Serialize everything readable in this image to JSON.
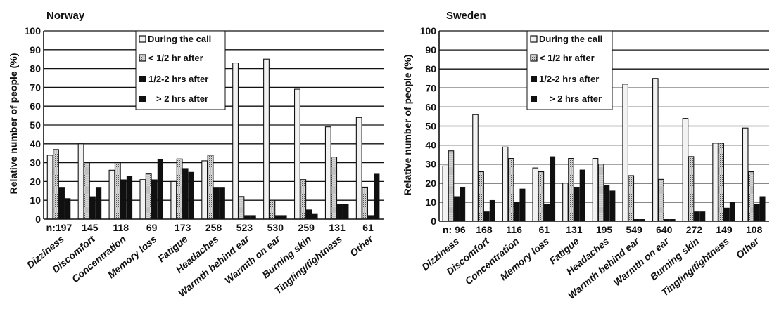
{
  "chart_data": [
    {
      "type": "bar",
      "title": "Norway",
      "ylabel": "Relative number of people (%)",
      "ylim": [
        0,
        100
      ],
      "yticks": [
        0,
        10,
        20,
        30,
        40,
        50,
        60,
        70,
        80,
        90,
        100
      ],
      "grid": true,
      "legend_position": "top-center",
      "categories": [
        "Dizziness",
        "Discomfort",
        "Concentration",
        "Memory loss",
        "Fatigue",
        "Headaches",
        "Warmth behind ear",
        "Warmth on ear",
        "Burning skin",
        "Tingling/tightness",
        "Other"
      ],
      "n_values": [
        "n:197",
        "145",
        "118",
        "69",
        "173",
        "258",
        "523",
        "530",
        "259",
        "131",
        "61"
      ],
      "series": [
        {
          "name": "During the call",
          "values": [
            34,
            40,
            26,
            21,
            20,
            31,
            83,
            85,
            69,
            49,
            54
          ]
        },
        {
          "name": "< 1/2 hr after",
          "values": [
            37,
            30,
            30,
            24,
            32,
            34,
            12,
            10,
            21,
            33,
            17
          ]
        },
        {
          "name": "1/2 - 2 hrs after",
          "values": [
            17,
            12,
            21,
            21,
            27,
            17,
            2,
            2,
            5,
            8,
            2
          ]
        },
        {
          "name": "> 2 hrs after",
          "values": [
            11,
            17,
            23,
            32,
            25,
            17,
            2,
            2,
            3,
            8,
            24
          ]
        }
      ]
    },
    {
      "type": "bar",
      "title": "Sweden",
      "ylabel": "Relative number of people (%)",
      "ylim": [
        0,
        100
      ],
      "yticks": [
        0,
        10,
        20,
        30,
        40,
        50,
        60,
        70,
        80,
        90,
        100
      ],
      "grid": true,
      "legend_position": "top-center",
      "categories": [
        "Dizziness",
        "Discomfort",
        "Concentration",
        "Memory loss",
        "Fatigue",
        "Headaches",
        "Warmth behind ear",
        "Warmth on ear",
        "Burning skin",
        "Tingling/tightness",
        "Other"
      ],
      "n_values": [
        "n: 96",
        "168",
        "116",
        "61",
        "131",
        "195",
        "549",
        "640",
        "272",
        "149",
        "108"
      ],
      "series": [
        {
          "name": "During the call",
          "values": [
            29,
            56,
            39,
            28,
            20,
            33,
            72,
            75,
            54,
            41,
            49
          ]
        },
        {
          "name": "< 1/2 hr after",
          "values": [
            37,
            26,
            33,
            26,
            33,
            30,
            24,
            22,
            34,
            41,
            26
          ]
        },
        {
          "name": "1/2 - 2 hrs after",
          "values": [
            13,
            5,
            10,
            9,
            18,
            19,
            1,
            1,
            5,
            7,
            9
          ]
        },
        {
          "name": "> 2 hrs after",
          "values": [
            18,
            11,
            17,
            34,
            27,
            16,
            1,
            1,
            5,
            10,
            13
          ]
        }
      ]
    }
  ],
  "legend_labels": [
    "During the call",
    "< 1/2 hr after",
    "1/2-2 hrs after",
    "> 2 hrs after"
  ],
  "colors": {
    "during": "#f2f2f2",
    "half_hr": "#c8c8c8",
    "half_to_two": "#101010",
    "over_two": "#101010",
    "ink": "#111111"
  }
}
